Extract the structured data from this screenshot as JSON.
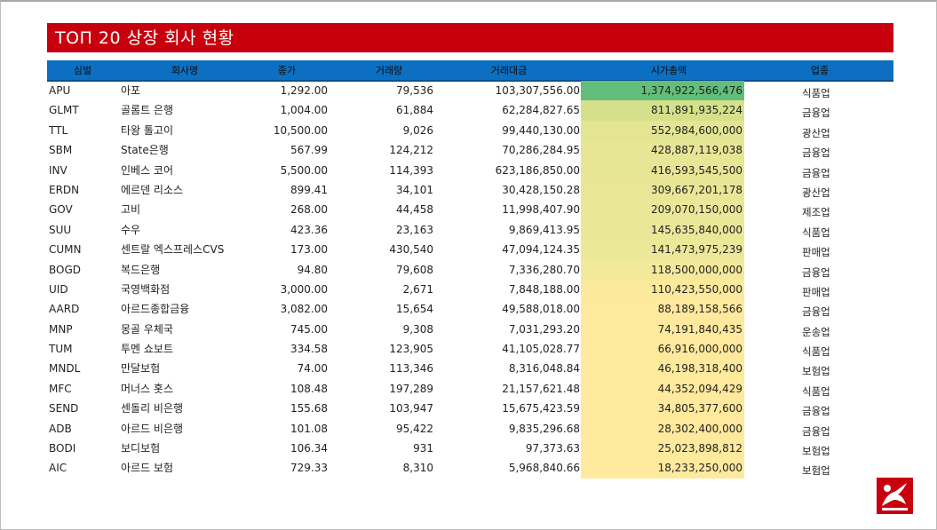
{
  "title": "TOП 20 상장 회사 현황",
  "headers": [
    "심벌",
    "회사명",
    "종가",
    "거래량",
    "거래대금",
    "시가총액",
    "업종"
  ],
  "rows": [
    {
      "sym": "APU",
      "name": "아포",
      "price": "1,292.00",
      "vol": "79,536",
      "amt": "103,307,556.00",
      "cap": "1,374,922,566,476",
      "ind": "식품업",
      "cap_color": "#63be7b"
    },
    {
      "sym": "GLMT",
      "name": "골롬트 은행",
      "price": "1,004.00",
      "vol": "61,884",
      "amt": "62,284,827.65",
      "cap": "811,891,935,224",
      "ind": "금융업",
      "cap_color": "#d5e18a"
    },
    {
      "sym": "TTL",
      "name": "타왕 톨고이",
      "price": "10,500.00",
      "vol": "9,026",
      "amt": "99,440,130.00",
      "cap": "552,984,600,000",
      "ind": "광산업",
      "cap_color": "#e3e593"
    },
    {
      "sym": "SBM",
      "name": "State은행",
      "price": "567.99",
      "vol": "124,212",
      "amt": "70,286,284.95",
      "cap": "428,887,119,038",
      "ind": "금융업",
      "cap_color": "#e6e695"
    },
    {
      "sym": "INV",
      "name": "인베스 코어",
      "price": "5,500.00",
      "vol": "114,393",
      "amt": "623,186,850.00",
      "cap": "416,593,545,500",
      "ind": "금융업",
      "cap_color": "#e6e695"
    },
    {
      "sym": "ERDN",
      "name": "에르덴 리소스",
      "price": "899.41",
      "vol": "34,101",
      "amt": "30,428,150.28",
      "cap": "309,667,201,178",
      "ind": "광산업",
      "cap_color": "#e9e797"
    },
    {
      "sym": "GOV",
      "name": "고비",
      "price": "268.00",
      "vol": "44,458",
      "amt": "11,998,407.90",
      "cap": "209,070,150,000",
      "ind": "제조업",
      "cap_color": "#ebe799"
    },
    {
      "sym": "SUU",
      "name": "수우",
      "price": "423.36",
      "vol": "23,163",
      "amt": "9,869,413.95",
      "cap": "145,635,840,000",
      "ind": "식품업",
      "cap_color": "#ebe799"
    },
    {
      "sym": "CUMN",
      "name": "센트랄 엑스프레스CVS",
      "price": "173.00",
      "vol": "430,540",
      "amt": "47,094,124.35",
      "cap": "141,473,975,239",
      "ind": "판매업",
      "cap_color": "#ece899"
    },
    {
      "sym": "BOGD",
      "name": "복드은행",
      "price": "94.80",
      "vol": "79,608",
      "amt": "7,336,280.70",
      "cap": "118,500,000,000",
      "ind": "금융업",
      "cap_color": "#f3e99b"
    },
    {
      "sym": "UID",
      "name": "국영백화점",
      "price": "3,000.00",
      "vol": "2,671",
      "amt": "7,848,188.00",
      "cap": "110,423,550,000",
      "ind": "판매업",
      "cap_color": "#fbe99c"
    },
    {
      "sym": "AARD",
      "name": "아르드종합금융",
      "price": "3,082.00",
      "vol": "15,654",
      "amt": "49,588,018.00",
      "cap": "88,189,158,566",
      "ind": "금융업",
      "cap_color": "#fee99d"
    },
    {
      "sym": "MNP",
      "name": "몽골 우체국",
      "price": "745.00",
      "vol": "9,308",
      "amt": "7,031,293.20",
      "cap": "74,191,840,435",
      "ind": "운송업",
      "cap_color": "#fee99d"
    },
    {
      "sym": "TUM",
      "name": "투멘 쇼보트",
      "price": "334.58",
      "vol": "123,905",
      "amt": "41,105,028.77",
      "cap": "66,916,000,000",
      "ind": "식품업",
      "cap_color": "#ffe99d"
    },
    {
      "sym": "MNDL",
      "name": "만달보험",
      "price": "74.00",
      "vol": "113,346",
      "amt": "8,316,048.84",
      "cap": "46,198,318,400",
      "ind": "보험업",
      "cap_color": "#ffe99d"
    },
    {
      "sym": "MFC",
      "name": "머너스 홋스",
      "price": "108.48",
      "vol": "197,289",
      "amt": "21,157,621.48",
      "cap": "44,352,094,429",
      "ind": "식품업",
      "cap_color": "#ffe99d"
    },
    {
      "sym": "SEND",
      "name": "센돌리 비은행",
      "price": "155.68",
      "vol": "103,947",
      "amt": "15,675,423.59",
      "cap": "34,805,377,600",
      "ind": "금융업",
      "cap_color": "#ffe99d"
    },
    {
      "sym": "ADB",
      "name": "아르드 비은행",
      "price": "101.08",
      "vol": "95,422",
      "amt": "9,835,296.68",
      "cap": "28,302,400,000",
      "ind": "금융업",
      "cap_color": "#ffe99d"
    },
    {
      "sym": "BODI",
      "name": "보디보험",
      "price": "106.34",
      "vol": "931",
      "amt": "97,373.63",
      "cap": "25,023,898,812",
      "ind": "보험업",
      "cap_color": "#ffe99d"
    },
    {
      "sym": "AIC",
      "name": "아르드 보험",
      "price": "729.33",
      "vol": "8,310",
      "amt": "5,968,840.66",
      "cap": "18,233,250,000",
      "ind": "보험업",
      "cap_color": "#ffe99d"
    }
  ]
}
